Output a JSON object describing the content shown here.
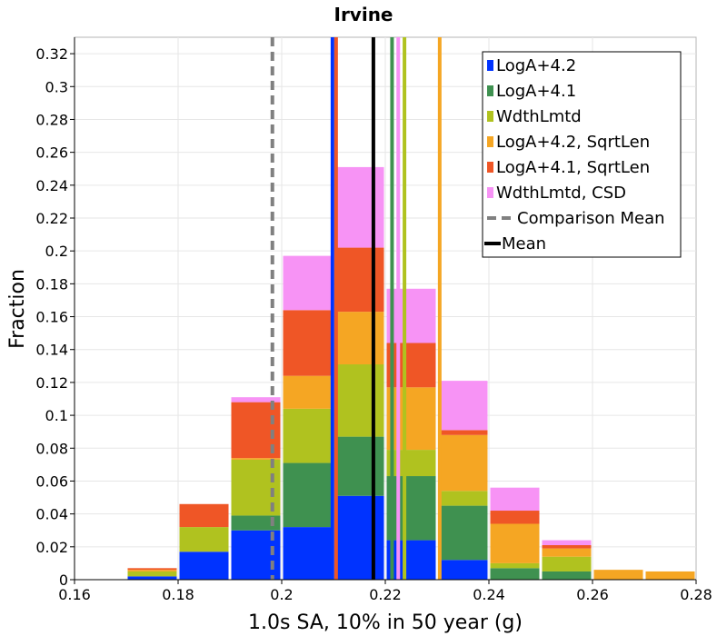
{
  "chart_data": {
    "type": "bar",
    "stacked": true,
    "title": "Irvine",
    "xlabel": "1.0s SA, 10% in 50 year (g)",
    "ylabel": "Fraction",
    "xlim": [
      0.16,
      0.28
    ],
    "ylim": [
      0,
      0.33
    ],
    "grid": true,
    "legend_position": "top-right",
    "bin_width": 0.01,
    "bin_starts": [
      0.17,
      0.18,
      0.19,
      0.2,
      0.21,
      0.22,
      0.23,
      0.24,
      0.25,
      0.26,
      0.27
    ],
    "x_ticks": [
      "0.16",
      "0.18",
      "0.2",
      "0.22",
      "0.24",
      "0.26",
      "0.28"
    ],
    "x_tick_values": [
      0.16,
      0.18,
      0.2,
      0.22,
      0.24,
      0.26,
      0.28
    ],
    "y_ticks": [
      "0",
      "0.02",
      "0.04",
      "0.06",
      "0.08",
      "0.1",
      "0.12",
      "0.14",
      "0.16",
      "0.18",
      "0.2",
      "0.22",
      "0.24",
      "0.26",
      "0.28",
      "0.3",
      "0.32"
    ],
    "y_tick_values": [
      0,
      0.02,
      0.04,
      0.06,
      0.08,
      0.1,
      0.12,
      0.14,
      0.16,
      0.18,
      0.2,
      0.22,
      0.24,
      0.26,
      0.28,
      0.3,
      0.32
    ],
    "series": [
      {
        "name": "LogA+4.2",
        "color": "#0033ff",
        "mean": 0.2098,
        "values": [
          0.002,
          0.017,
          0.03,
          0.032,
          0.051,
          0.024,
          0.012,
          0,
          0,
          0,
          0
        ]
      },
      {
        "name": "LogA+4.1",
        "color": "#3f9150",
        "mean": 0.2213,
        "values": [
          0,
          0,
          0.009,
          0.039,
          0.036,
          0.039,
          0.033,
          0.007,
          0.005,
          0,
          0
        ]
      },
      {
        "name": "WdthLmtd",
        "color": "#b0c21f",
        "mean": 0.2237,
        "values": [
          0.003,
          0.015,
          0.034,
          0.033,
          0.044,
          0.016,
          0.009,
          0.003,
          0.009,
          0,
          0
        ]
      },
      {
        "name": "LogA+4.2, SqrtLen",
        "color": "#f5a623",
        "mean": 0.2305,
        "values": [
          0.001,
          0,
          0.001,
          0.02,
          0.032,
          0.038,
          0.034,
          0.024,
          0.005,
          0.006,
          0.005
        ]
      },
      {
        "name": "LogA+4.1, SqrtLen",
        "color": "#ef5626",
        "mean": 0.2105,
        "values": [
          0.001,
          0.014,
          0.034,
          0.04,
          0.039,
          0.027,
          0.003,
          0.008,
          0.002,
          0,
          0
        ]
      },
      {
        "name": "WdthLmtd, CSD",
        "color": "#f793f5",
        "mean": 0.2225,
        "values": [
          0,
          0,
          0.003,
          0.033,
          0.049,
          0.033,
          0.03,
          0.014,
          0.003,
          0,
          0
        ]
      }
    ],
    "comparison_mean": {
      "name": "Comparison Mean",
      "value": 0.1982,
      "color": "#808080",
      "style": "dashed"
    },
    "overall_mean": {
      "name": "Mean",
      "value": 0.2177,
      "color": "#000000",
      "style": "solid"
    }
  }
}
